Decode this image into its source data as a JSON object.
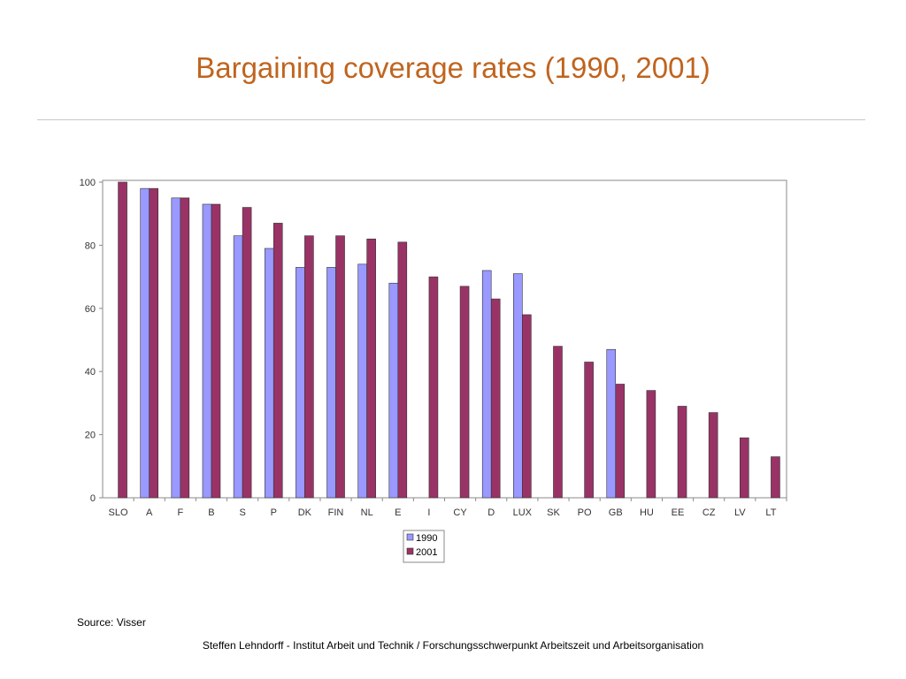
{
  "slide": {
    "title": "Bargaining coverage rates (1990, 2001)",
    "source": "Source: Visser",
    "footer": "Steffen Lehndorff - Institut Arbeit und Technik / Forschungsschwerpunkt Arbeitszeit und Arbeitsorganisation"
  },
  "chart_data": {
    "type": "bar",
    "categories": [
      "SLO",
      "A",
      "F",
      "B",
      "S",
      "P",
      "DK",
      "FIN",
      "NL",
      "E",
      "I",
      "CY",
      "D",
      "LUX",
      "SK",
      "PO",
      "GB",
      "HU",
      "EE",
      "CZ",
      "LV",
      "LT"
    ],
    "series": [
      {
        "name": "1990",
        "color": "#9999ff",
        "values": [
          null,
          98,
          95,
          93,
          83,
          79,
          73,
          73,
          74,
          68,
          null,
          null,
          72,
          71,
          null,
          null,
          47,
          null,
          null,
          null,
          null,
          null
        ]
      },
      {
        "name": "2001",
        "color": "#993366",
        "values": [
          100,
          98,
          95,
          93,
          92,
          87,
          83,
          83,
          82,
          81,
          70,
          67,
          63,
          58,
          48,
          43,
          36,
          34,
          29,
          27,
          19,
          13
        ]
      }
    ],
    "yticks": [
      0,
      20,
      40,
      60,
      80,
      100
    ],
    "ylim": [
      0,
      100
    ],
    "xlabel": "",
    "ylabel": "",
    "legend": "bottom-center",
    "grid": false
  }
}
